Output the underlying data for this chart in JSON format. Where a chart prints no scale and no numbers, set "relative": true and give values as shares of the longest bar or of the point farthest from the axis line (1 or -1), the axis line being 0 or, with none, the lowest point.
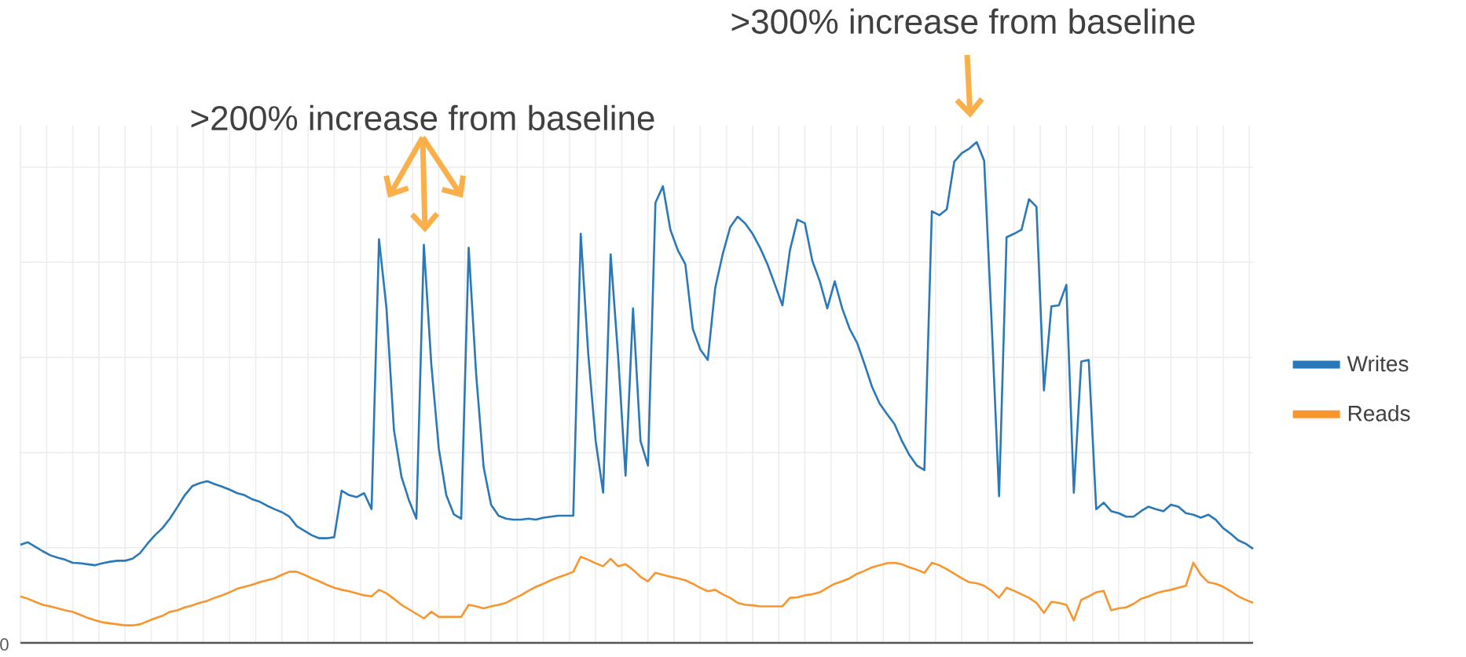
{
  "chart_data": {
    "type": "line",
    "relative": true,
    "grid": true,
    "legend": "right",
    "marker": "none",
    "line_style": "solid",
    "annotations": [
      "0",
      ">200% increase from baseline",
      ">300% increase from baseline"
    ],
    "categories": [
      null,
      null,
      null,
      null,
      null,
      null,
      null,
      null,
      null,
      null,
      null,
      null,
      null,
      null,
      null,
      null,
      null,
      null,
      null,
      null,
      null,
      null,
      null,
      null,
      null,
      null,
      null,
      null,
      null,
      null,
      null,
      null,
      null,
      null,
      null,
      null,
      null,
      null,
      null,
      null,
      null,
      null,
      null,
      null,
      null,
      null,
      null,
      null,
      null,
      null,
      null,
      null,
      null,
      null,
      null,
      null,
      null,
      null,
      null,
      null,
      null,
      null,
      null,
      null,
      null,
      null,
      null,
      null,
      null,
      null,
      null,
      null,
      null,
      null,
      null,
      null,
      null,
      null,
      null,
      null,
      null,
      null,
      null,
      null,
      null,
      null,
      null,
      null,
      null,
      null,
      null,
      null,
      null,
      null,
      null,
      null,
      null,
      null,
      null,
      null,
      null,
      null,
      null,
      null,
      null,
      null,
      null,
      null,
      null,
      null,
      null,
      null,
      null,
      null,
      null,
      null,
      null,
      null,
      null,
      null,
      null,
      null,
      null,
      null,
      null,
      null,
      null,
      null,
      null,
      null,
      null,
      null,
      null,
      null,
      null,
      null,
      null,
      null,
      null,
      null,
      null,
      null,
      null,
      null,
      null,
      null,
      null,
      null,
      null,
      null,
      null,
      null,
      null,
      null,
      null,
      null,
      null,
      null,
      null,
      null,
      null,
      null,
      null,
      null,
      null,
      null
    ],
    "series": [
      {
        "name": "Writes",
        "color": "#2a78b8",
        "values": [
          0.196,
          0.201,
          0.192,
          0.183,
          0.175,
          0.17,
          0.166,
          0.16,
          0.159,
          0.157,
          0.155,
          0.159,
          0.162,
          0.164,
          0.164,
          0.168,
          0.179,
          0.198,
          0.215,
          0.229,
          0.248,
          0.271,
          0.295,
          0.313,
          0.319,
          0.323,
          0.317,
          0.312,
          0.306,
          0.299,
          0.295,
          0.287,
          0.282,
          0.274,
          0.267,
          0.261,
          0.252,
          0.233,
          0.224,
          0.215,
          0.209,
          0.209,
          0.211,
          0.304,
          0.295,
          0.291,
          0.299,
          0.267,
          0.806,
          0.668,
          0.425,
          0.332,
          0.285,
          0.248,
          0.795,
          0.556,
          0.388,
          0.295,
          0.257,
          0.248,
          0.789,
          0.537,
          0.351,
          0.276,
          0.254,
          0.248,
          0.246,
          0.246,
          0.248,
          0.246,
          0.25,
          0.252,
          0.254,
          0.254,
          0.254,
          0.817,
          0.578,
          0.403,
          0.3,
          0.776,
          0.573,
          0.334,
          0.668,
          0.403,
          0.354,
          0.879,
          0.912,
          0.825,
          0.784,
          0.756,
          0.627,
          0.586,
          0.565,
          0.709,
          0.776,
          0.83,
          0.851,
          0.838,
          0.817,
          0.789,
          0.756,
          0.715,
          0.674,
          0.784,
          0.845,
          0.838,
          0.763,
          0.722,
          0.668,
          0.722,
          0.668,
          0.627,
          0.599,
          0.556,
          0.511,
          0.478,
          0.457,
          0.437,
          0.403,
          0.375,
          0.354,
          0.345,
          0.862,
          0.854,
          0.866,
          0.961,
          0.978,
          0.987,
          1,
          0.963,
          0.64,
          0.293,
          0.81,
          0.817,
          0.825,
          0.886,
          0.871,
          0.504,
          0.672,
          0.674,
          0.715,
          0.3,
          0.562,
          0.565,
          0.267,
          0.28,
          0.263,
          0.259,
          0.252,
          0.252,
          0.263,
          0.272,
          0.267,
          0.263,
          0.276,
          0.272,
          0.259,
          0.256,
          0.25,
          0.256,
          0.246,
          0.229,
          0.218,
          0.205,
          0.198,
          0.188
        ]
      },
      {
        "name": "Reads",
        "color": "#f7962e",
        "values": [
          0.093,
          0.088,
          0.082,
          0.076,
          0.073,
          0.069,
          0.065,
          0.062,
          0.056,
          0.05,
          0.045,
          0.041,
          0.039,
          0.037,
          0.035,
          0.035,
          0.037,
          0.043,
          0.049,
          0.054,
          0.062,
          0.065,
          0.071,
          0.075,
          0.08,
          0.084,
          0.09,
          0.095,
          0.101,
          0.108,
          0.112,
          0.116,
          0.121,
          0.125,
          0.129,
          0.136,
          0.142,
          0.142,
          0.136,
          0.129,
          0.123,
          0.116,
          0.11,
          0.106,
          0.103,
          0.099,
          0.095,
          0.093,
          0.106,
          0.099,
          0.088,
          0.076,
          0.067,
          0.058,
          0.049,
          0.062,
          0.052,
          0.052,
          0.052,
          0.052,
          0.076,
          0.073,
          0.069,
          0.073,
          0.076,
          0.08,
          0.088,
          0.095,
          0.104,
          0.112,
          0.118,
          0.125,
          0.131,
          0.136,
          0.142,
          0.172,
          0.166,
          0.159,
          0.153,
          0.168,
          0.153,
          0.157,
          0.146,
          0.132,
          0.123,
          0.14,
          0.136,
          0.132,
          0.129,
          0.125,
          0.118,
          0.11,
          0.103,
          0.106,
          0.097,
          0.09,
          0.08,
          0.076,
          0.075,
          0.073,
          0.073,
          0.073,
          0.073,
          0.09,
          0.091,
          0.095,
          0.097,
          0.101,
          0.11,
          0.118,
          0.123,
          0.129,
          0.138,
          0.144,
          0.151,
          0.155,
          0.159,
          0.16,
          0.157,
          0.151,
          0.146,
          0.14,
          0.16,
          0.155,
          0.147,
          0.138,
          0.129,
          0.121,
          0.119,
          0.114,
          0.104,
          0.09,
          0.11,
          0.104,
          0.097,
          0.09,
          0.08,
          0.06,
          0.082,
          0.08,
          0.076,
          0.045,
          0.086,
          0.093,
          0.101,
          0.104,
          0.065,
          0.069,
          0.071,
          0.078,
          0.088,
          0.093,
          0.099,
          0.103,
          0.106,
          0.11,
          0.114,
          0.16,
          0.136,
          0.121,
          0.118,
          0.112,
          0.103,
          0.093,
          0.086,
          0.08
        ]
      }
    ]
  }
}
